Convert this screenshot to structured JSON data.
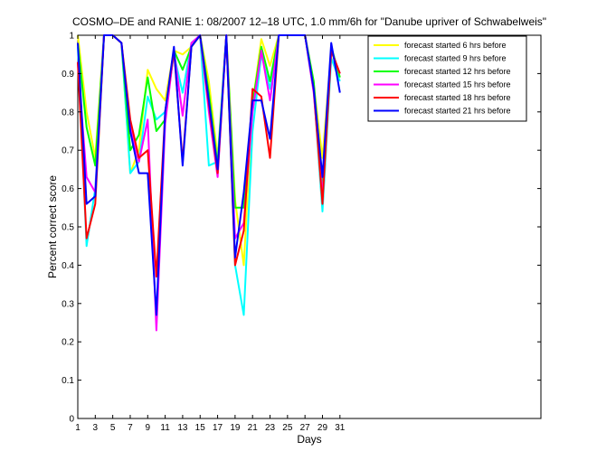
{
  "chart_data": {
    "type": "line",
    "title": "COSMO–DE and RANIE 1: 08/2007 12–18 UTC, 1.0 mm/6h for \"Danube upriver of Schwabelweis\"",
    "xlabel": "Days",
    "ylabel": "Percent correct score",
    "xlim": [
      1,
      54
    ],
    "ylim": [
      0,
      1
    ],
    "xticks": [
      1,
      3,
      5,
      7,
      9,
      11,
      13,
      15,
      17,
      19,
      21,
      23,
      25,
      27,
      29,
      31
    ],
    "yticks": [
      0,
      0.1,
      0.2,
      0.3,
      0.4,
      0.5,
      0.6,
      0.7,
      0.8,
      0.9,
      1
    ],
    "ytick_labels": [
      "0",
      "0.1",
      "0.2",
      "0.3",
      "0.4",
      "0.5",
      "0.6",
      "0.7",
      "0.8",
      "0.9",
      "1"
    ],
    "legend_position": "top-right",
    "grid": false,
    "x": [
      1,
      2,
      3,
      4,
      5,
      6,
      7,
      8,
      9,
      10,
      11,
      12,
      13,
      14,
      15,
      16,
      17,
      18,
      19,
      20,
      21,
      22,
      23,
      24,
      25,
      26,
      27,
      28,
      29,
      30,
      31
    ],
    "series": [
      {
        "name": "forecast started 6 hrs before",
        "color": "#ffff00",
        "values": [
          1.0,
          0.8,
          0.68,
          1.0,
          1.0,
          0.98,
          0.64,
          0.7,
          0.91,
          0.86,
          0.83,
          0.96,
          0.95,
          0.97,
          1.0,
          0.88,
          0.68,
          1.0,
          0.57,
          0.4,
          0.82,
          0.99,
          0.92,
          1.0,
          1.0,
          1.0,
          1.0,
          0.87,
          0.68,
          0.96,
          0.89
        ]
      },
      {
        "name": "forecast started 9 hrs before",
        "color": "#00ffff",
        "values": [
          0.97,
          0.45,
          0.6,
          1.0,
          1.0,
          0.98,
          0.64,
          0.67,
          0.84,
          0.78,
          0.8,
          0.95,
          0.85,
          0.98,
          1.0,
          0.66,
          0.67,
          1.0,
          0.4,
          0.27,
          0.75,
          0.95,
          0.86,
          1.0,
          1.0,
          1.0,
          1.0,
          0.86,
          0.54,
          0.94,
          0.88
        ]
      },
      {
        "name": "forecast started 12 hrs before",
        "color": "#00ff00",
        "values": [
          0.98,
          0.76,
          0.66,
          1.0,
          1.0,
          0.98,
          0.7,
          0.74,
          0.89,
          0.75,
          0.78,
          0.96,
          0.91,
          0.97,
          1.0,
          0.85,
          0.66,
          1.0,
          0.55,
          0.55,
          0.82,
          0.97,
          0.88,
          1.0,
          1.0,
          1.0,
          1.0,
          0.88,
          0.6,
          0.97,
          0.89
        ]
      },
      {
        "name": "forecast started 15 hrs before",
        "color": "#ff00ff",
        "values": [
          0.93,
          0.63,
          0.59,
          1.0,
          1.0,
          0.98,
          0.76,
          0.67,
          0.78,
          0.23,
          0.77,
          0.96,
          0.79,
          0.98,
          1.0,
          0.8,
          0.63,
          1.0,
          0.47,
          0.51,
          0.8,
          0.96,
          0.83,
          1.0,
          1.0,
          1.0,
          1.0,
          0.85,
          0.58,
          0.96,
          0.9
        ]
      },
      {
        "name": "forecast started 18 hrs before",
        "color": "#ff0000",
        "values": [
          0.93,
          0.47,
          0.56,
          1.0,
          1.0,
          0.98,
          0.78,
          0.68,
          0.7,
          0.37,
          0.8,
          0.96,
          0.67,
          0.97,
          1.0,
          0.82,
          0.64,
          1.0,
          0.4,
          0.49,
          0.86,
          0.84,
          0.68,
          1.0,
          1.0,
          1.0,
          1.0,
          0.86,
          0.56,
          0.96,
          0.9
        ]
      },
      {
        "name": "forecast started 21 hrs before",
        "color": "#0000ff",
        "values": [
          0.98,
          0.56,
          0.58,
          1.0,
          1.0,
          0.98,
          0.75,
          0.64,
          0.64,
          0.27,
          0.8,
          0.97,
          0.66,
          0.97,
          1.0,
          0.83,
          0.65,
          1.0,
          0.42,
          0.59,
          0.83,
          0.83,
          0.73,
          1.0,
          1.0,
          1.0,
          1.0,
          0.86,
          0.63,
          0.98,
          0.85
        ]
      }
    ]
  }
}
